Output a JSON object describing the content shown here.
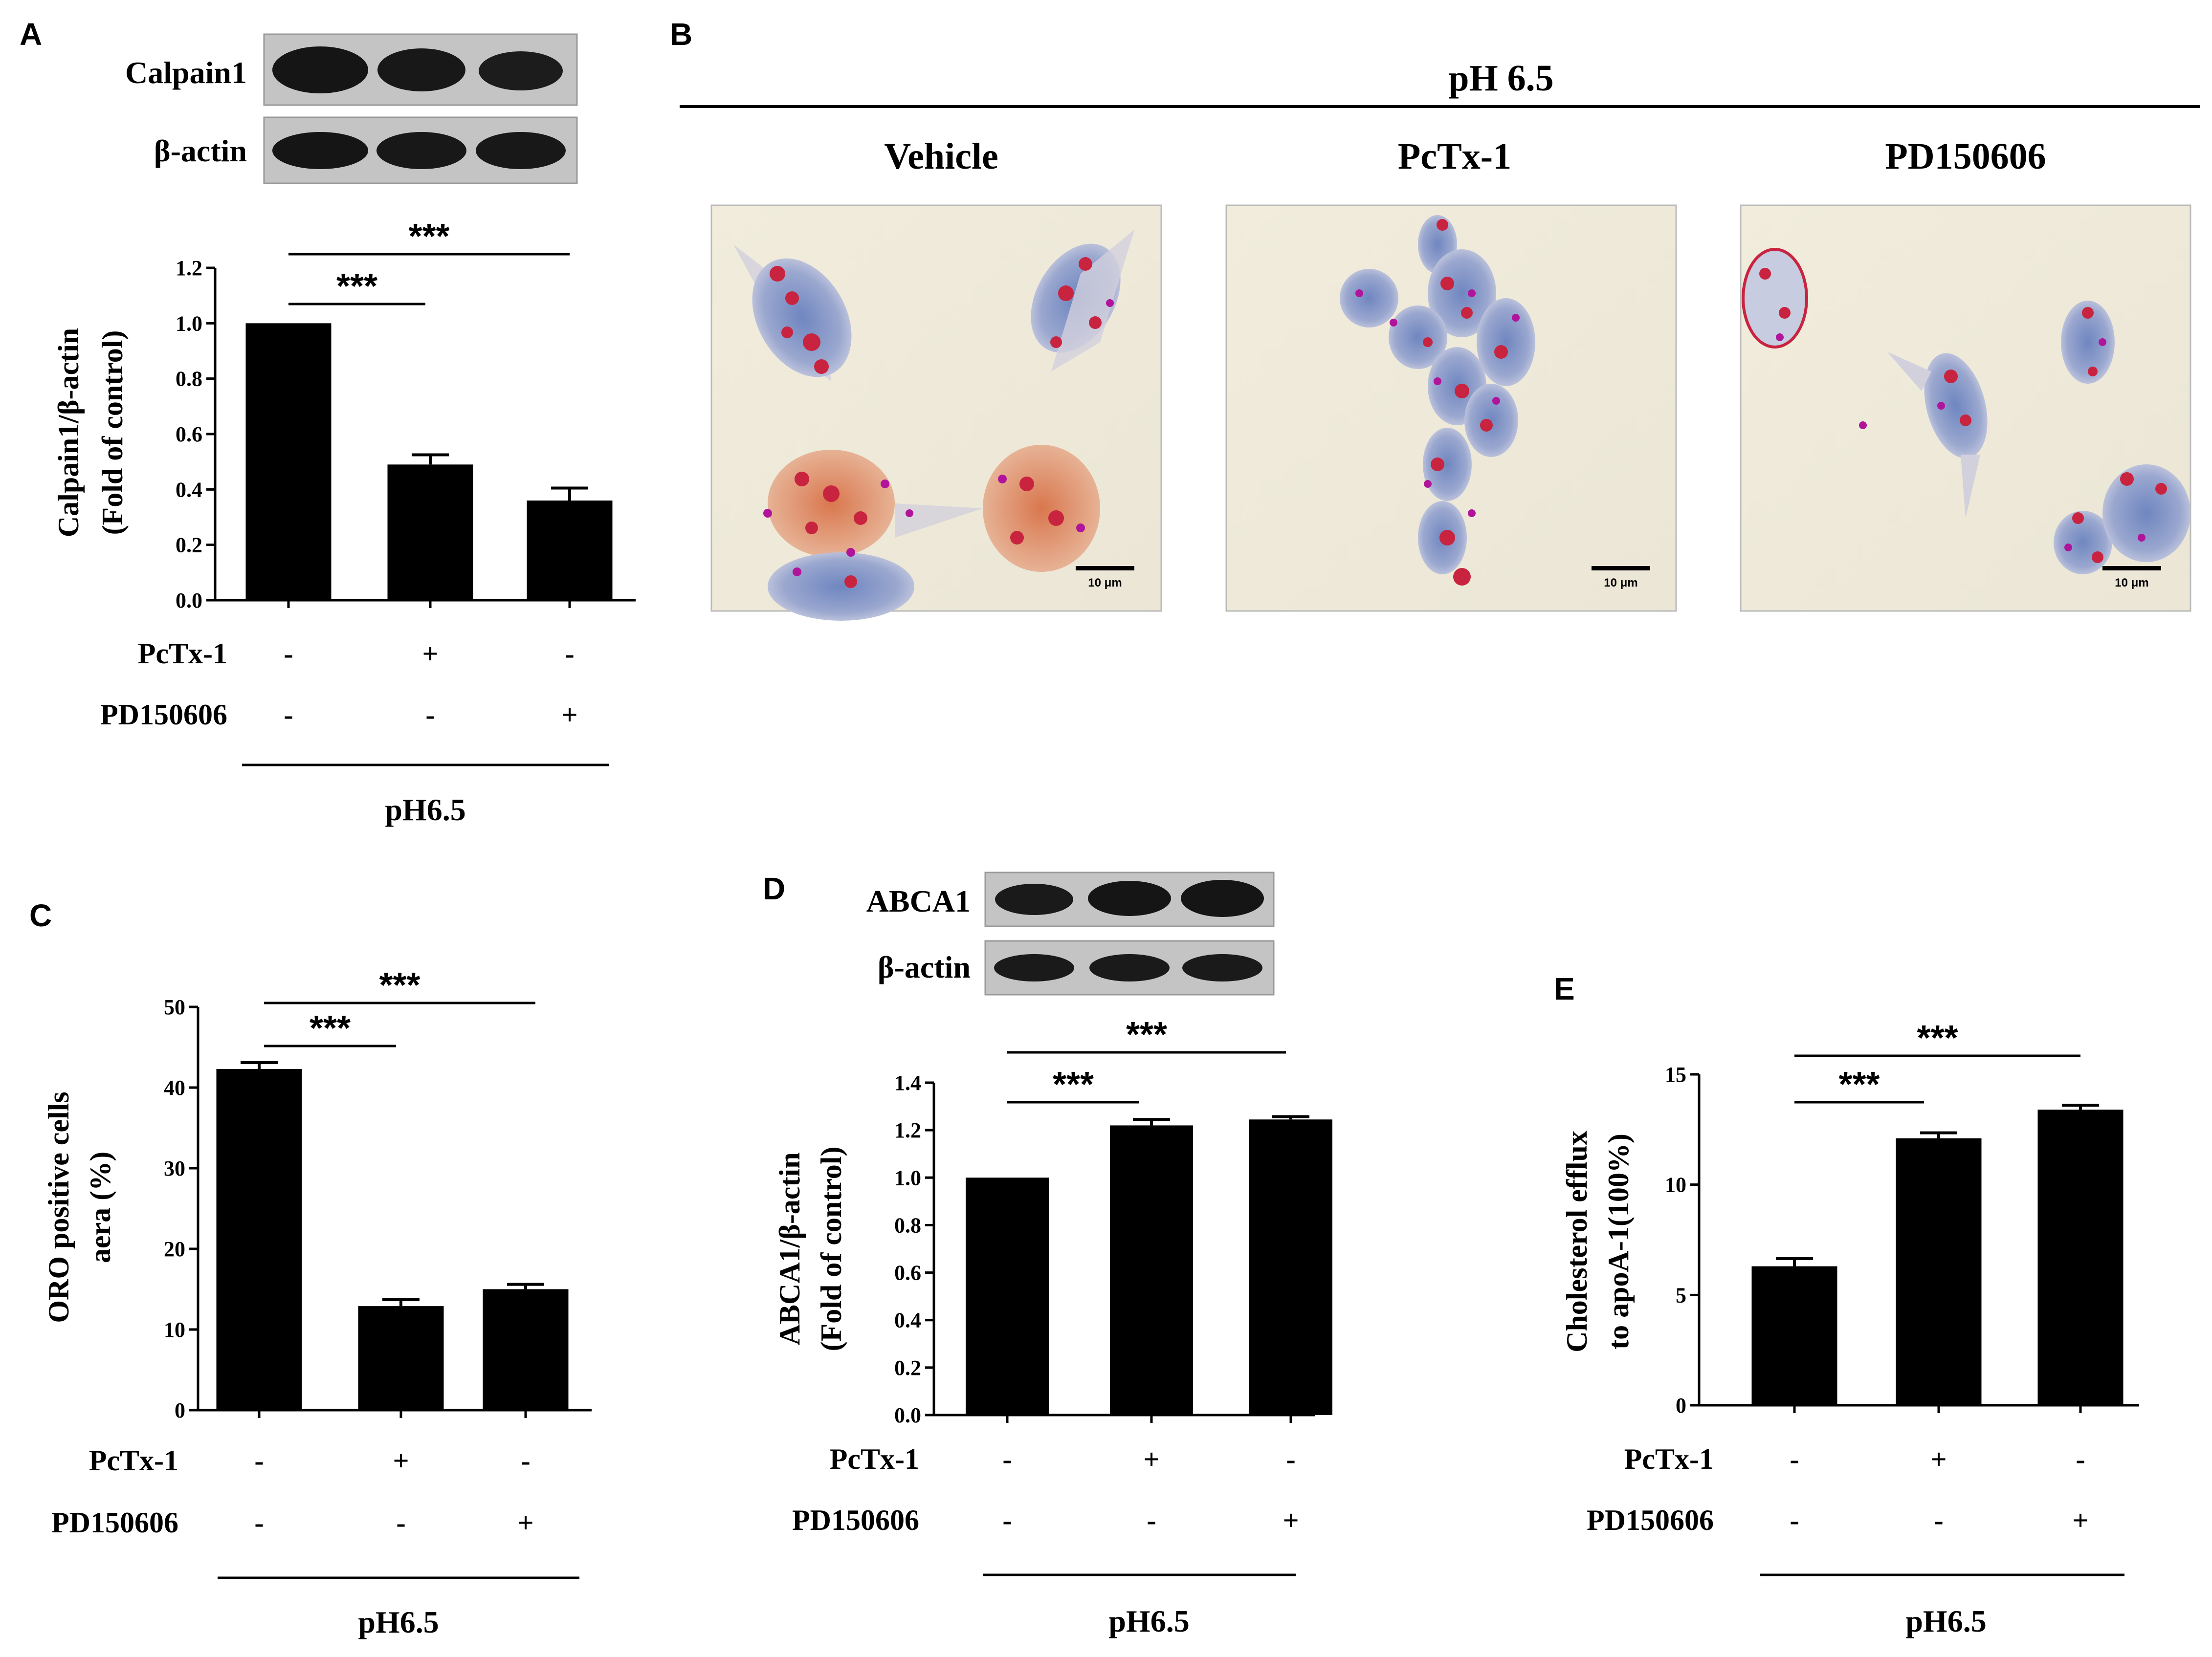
{
  "figure": {
    "panel_a": {
      "letter": "A",
      "blot_labels": [
        "Calpain1",
        "β-actin"
      ],
      "ylabel": [
        "Calpain1/β-actin",
        "(Fold of control)"
      ],
      "pctx_label": "PcTx-1",
      "pd_label": "PD150606",
      "pctx_signs": [
        "-",
        "+",
        "-"
      ],
      "pd_signs": [
        "-",
        "-",
        "+"
      ],
      "condition": "pH6.5"
    },
    "panel_b": {
      "letter": "B",
      "header": "pH 6.5",
      "groups": [
        "Vehicle",
        "PcTx-1",
        "PD150606"
      ],
      "scale_bar": "10 μm"
    },
    "panel_c": {
      "letter": "C",
      "ylabel": [
        "ORO positive cells",
        "aera (%)"
      ],
      "pctx_label": "PcTx-1",
      "pd_label": "PD150606",
      "pctx_signs": [
        "-",
        "+",
        "-"
      ],
      "pd_signs": [
        "-",
        "-",
        "+"
      ],
      "condition": "pH6.5"
    },
    "panel_d": {
      "letter": "D",
      "blot_labels": [
        "ABCA1",
        "β-actin"
      ],
      "ylabel": [
        "ABCA1/β-actin",
        "(Fold of control)"
      ],
      "pctx_label": "PcTx-1",
      "pd_label": "PD150606",
      "pctx_signs": [
        "-",
        "+",
        "-"
      ],
      "pd_signs": [
        "-",
        "-",
        "+"
      ],
      "condition": "pH6.5"
    },
    "panel_e": {
      "letter": "E",
      "ylabel": [
        "Cholesterol efflux",
        "to apoA-1(100%)"
      ],
      "pctx_label": "PcTx-1",
      "pd_label": "PD150606",
      "pctx_signs": [
        "-",
        "+",
        "-"
      ],
      "pd_signs": [
        "-",
        "-",
        "+"
      ],
      "condition": "pH6.5"
    }
  },
  "colors": {
    "bar": "#000000",
    "axis": "#000000",
    "blot_bg": "#c8c8c8",
    "blot_band": "#111111"
  },
  "chart_data": [
    {
      "panel": "A",
      "type": "bar",
      "categories": [
        "Vehicle",
        "PcTx-1",
        "PD150606"
      ],
      "values": [
        1.0,
        0.49,
        0.36
      ],
      "errors": [
        0.0,
        0.035,
        0.045
      ],
      "ylim": [
        0,
        1.2
      ],
      "yticks": [
        "0.0",
        "0.2",
        "0.4",
        "0.6",
        "0.8",
        "1.0",
        "1.2"
      ],
      "significance": [
        {
          "from": 0,
          "to": 1,
          "label": "***"
        },
        {
          "from": 0,
          "to": 2,
          "label": "***"
        }
      ]
    },
    {
      "panel": "C",
      "type": "bar",
      "categories": [
        "Vehicle",
        "PcTx-1",
        "PD150606"
      ],
      "values": [
        42.3,
        12.9,
        15.0
      ],
      "errors": [
        0.8,
        0.8,
        0.6
      ],
      "ylim": [
        0,
        50
      ],
      "yticks": [
        "0",
        "10",
        "20",
        "30",
        "40",
        "50"
      ],
      "significance": [
        {
          "from": 0,
          "to": 1,
          "label": "***"
        },
        {
          "from": 0,
          "to": 2,
          "label": "***"
        }
      ]
    },
    {
      "panel": "D",
      "type": "bar",
      "categories": [
        "Vehicle",
        "PcTx-1",
        "PD150606"
      ],
      "values": [
        1.0,
        1.22,
        1.245
      ],
      "errors": [
        0.0,
        0.025,
        0.012
      ],
      "ylim": [
        0,
        1.4
      ],
      "yticks": [
        "0.0",
        "0.2",
        "0.4",
        "0.6",
        "0.8",
        "1.0",
        "1.2",
        "1.4"
      ],
      "significance": [
        {
          "from": 0,
          "to": 1,
          "label": "***"
        },
        {
          "from": 0,
          "to": 2,
          "label": "***"
        }
      ]
    },
    {
      "panel": "E",
      "type": "bar",
      "categories": [
        "Vehicle",
        "PcTx-1",
        "PD150606"
      ],
      "values": [
        6.3,
        12.1,
        13.4
      ],
      "errors": [
        0.35,
        0.25,
        0.2
      ],
      "ylim": [
        0,
        15
      ],
      "yticks": [
        "0",
        "5",
        "10",
        "15"
      ],
      "significance": [
        {
          "from": 0,
          "to": 1,
          "label": "***"
        },
        {
          "from": 0,
          "to": 2,
          "label": "***"
        }
      ]
    }
  ]
}
